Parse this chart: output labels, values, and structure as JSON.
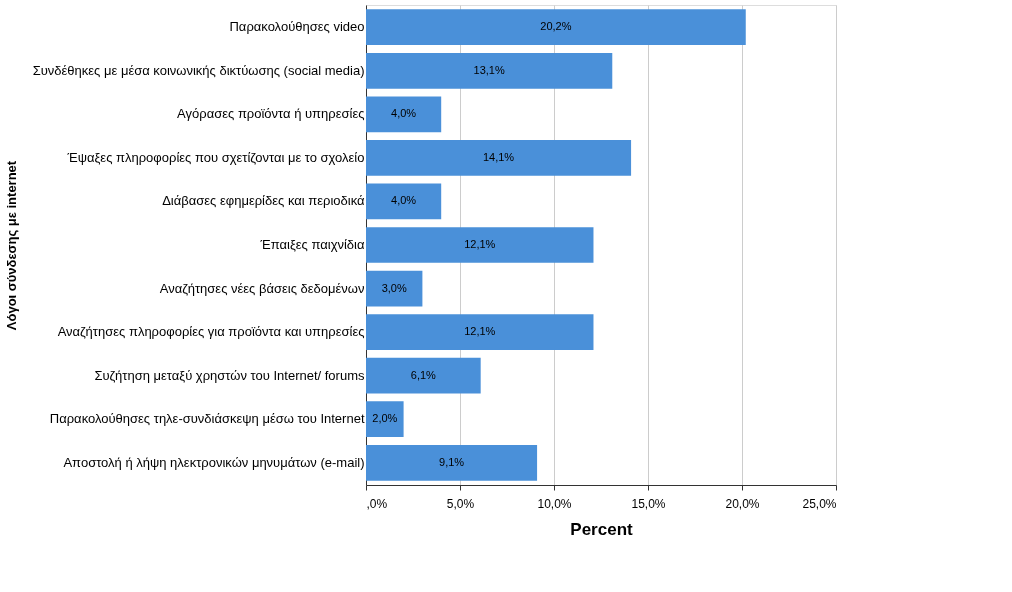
{
  "chart_data": {
    "type": "bar",
    "orientation": "horizontal",
    "xlabel": "Percent",
    "ylabel": "Λόγοι σύνδεσης με internet",
    "categories": [
      "Παρακολούθησες video",
      "Συνδέθηκες με μέσα κοινωνικής δικτύωσης (social media)",
      "Αγόρασες προϊόντα ή υπηρεσίες",
      "Έψαξες πληροφορίες που σχετίζονται με το σχολείο",
      "Διάβασες εφημερίδες και περιοδικά",
      "Έπαιξες παιχνίδια",
      "Αναζήτησες νέες  βάσεις δεδομένων",
      "Αναζήτησες πληροφορίες για προϊόντα και υπηρεσίες",
      "Συζήτηση μεταξύ χρηστών του Internet/ forums",
      "Παρακολούθησες  τηλε-συνδιάσκεψη μέσω του Internet",
      "Αποστολή ή λήψη ηλεκτρονικών μηνυμάτων (e-mail)"
    ],
    "values": [
      20.2,
      13.1,
      4.0,
      14.1,
      4.0,
      12.1,
      3.0,
      12.1,
      6.1,
      2.0,
      9.1
    ],
    "value_labels": [
      "20,2%",
      "13,1%",
      "4,0%",
      "14,1%",
      "4,0%",
      "12,1%",
      "3,0%",
      "12,1%",
      "6,1%",
      "2,0%",
      "9,1%"
    ],
    "color": "#4a90d9",
    "xlim": [
      0,
      25
    ],
    "xticks": [
      {
        "value": 0,
        "label": ",0%"
      },
      {
        "value": 5,
        "label": "5,0%"
      },
      {
        "value": 10,
        "label": "10,0%"
      },
      {
        "value": 15,
        "label": "15,0%"
      },
      {
        "value": 20,
        "label": "20,0%"
      },
      {
        "value": 25,
        "label": "25,0%"
      }
    ],
    "grid": "x"
  }
}
